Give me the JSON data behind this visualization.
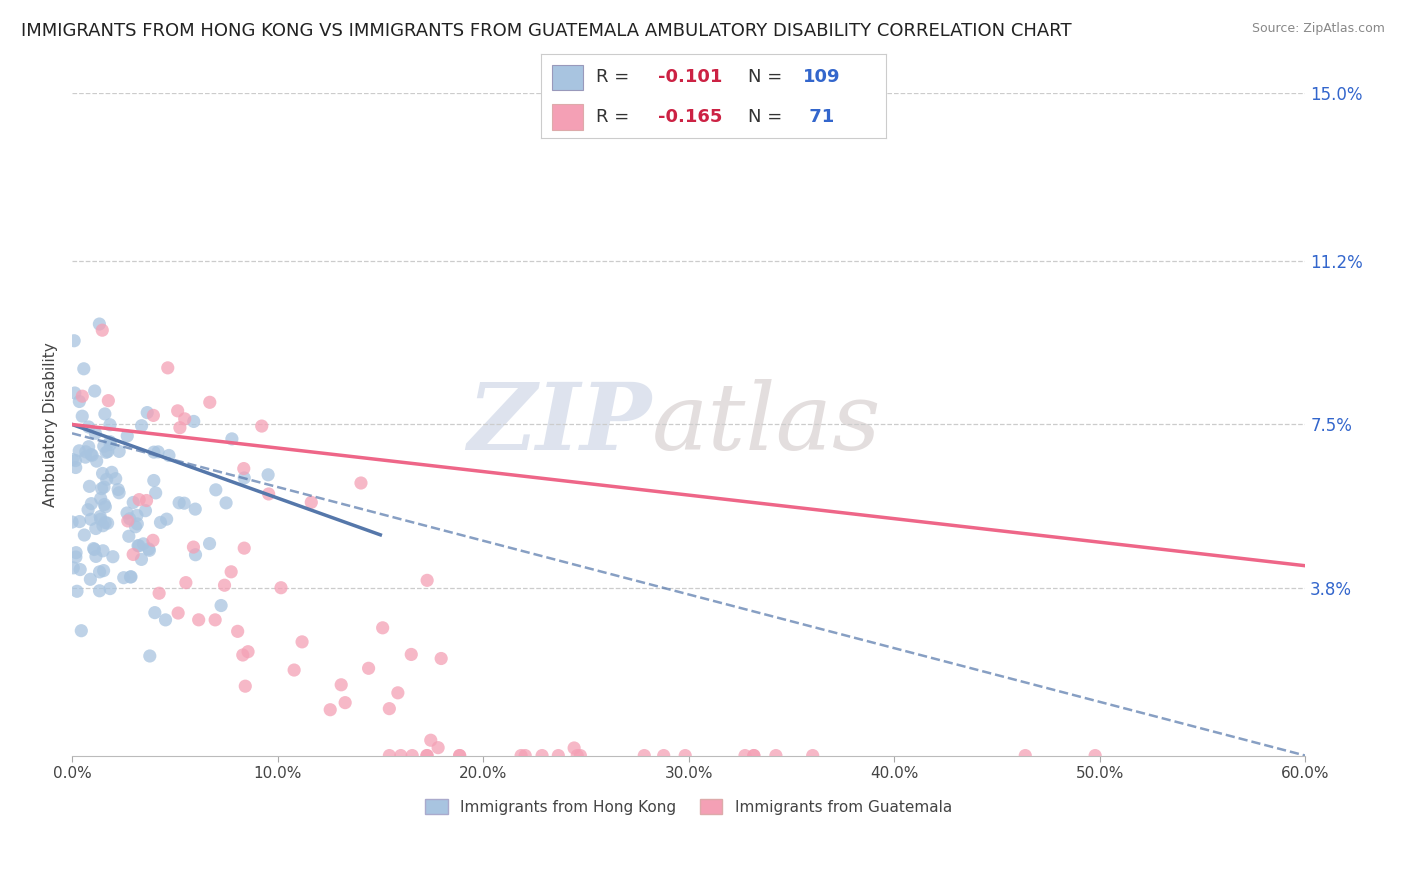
{
  "title": "IMMIGRANTS FROM HONG KONG VS IMMIGRANTS FROM GUATEMALA AMBULATORY DISABILITY CORRELATION CHART",
  "source": "Source: ZipAtlas.com",
  "ylabel": "Ambulatory Disability",
  "legend_label1": "Immigrants from Hong Kong",
  "legend_label2": "Immigrants from Guatemala",
  "R1": -0.101,
  "N1": 109,
  "R2": -0.165,
  "N2": 71,
  "xlim": [
    0.0,
    0.6
  ],
  "ylim": [
    0.0,
    0.15
  ],
  "yticks": [
    0.038,
    0.075,
    0.112,
    0.15
  ],
  "ytick_labels": [
    "3.8%",
    "7.5%",
    "11.2%",
    "15.0%"
  ],
  "xticks": [
    0.0,
    0.1,
    0.2,
    0.3,
    0.4,
    0.5,
    0.6
  ],
  "xtick_labels": [
    "0.0%",
    "10.0%",
    "20.0%",
    "30.0%",
    "40.0%",
    "50.0%",
    "60.0%"
  ],
  "color_hk": "#a8c4e0",
  "color_gt": "#f4a0b5",
  "line_color_hk": "#5577aa",
  "line_color_gt": "#ee6688",
  "background_color": "#ffffff",
  "title_fontsize": 13,
  "watermark_zip": "ZIP",
  "watermark_atlas": "atlas",
  "legend_R_color": "#333366",
  "legend_N_color": "#3366cc",
  "legend_val_color": "#cc2244"
}
